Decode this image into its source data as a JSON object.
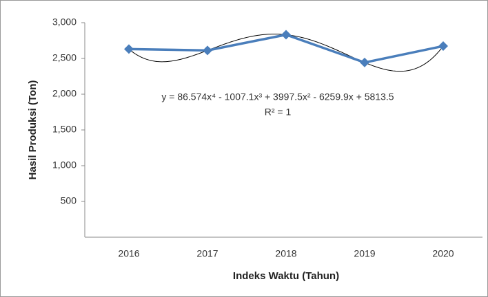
{
  "chart_data": {
    "type": "line",
    "x_label": "Indeks Waktu (Tahun)",
    "y_label": "Hasil Produksi (Ton)",
    "categories": [
      "2016",
      "2017",
      "2018",
      "2019",
      "2020"
    ],
    "series": [
      {
        "name": "Hasil Produksi",
        "color": "#4a7ebb",
        "values": [
          2631,
          2612,
          2832,
          2443,
          2673
        ]
      }
    ],
    "ylim": [
      0,
      3000
    ],
    "yticks": [
      500,
      {
        "value": 1000,
        "label": "1,000"
      },
      {
        "value": 1500,
        "label": "1,500"
      },
      {
        "value": 2000,
        "label": "2,000"
      },
      {
        "value": 2500,
        "label": "2,500"
      },
      {
        "value": 3000,
        "label": "3,000"
      }
    ],
    "grid": false,
    "trendline": "polynomial",
    "trendline_color": "#000000",
    "annotations": [
      "y = 86.574x⁴ - 1007.1x³ + 3997.5x² - 6259.9x + 5813.5",
      "R² = 1"
    ]
  }
}
